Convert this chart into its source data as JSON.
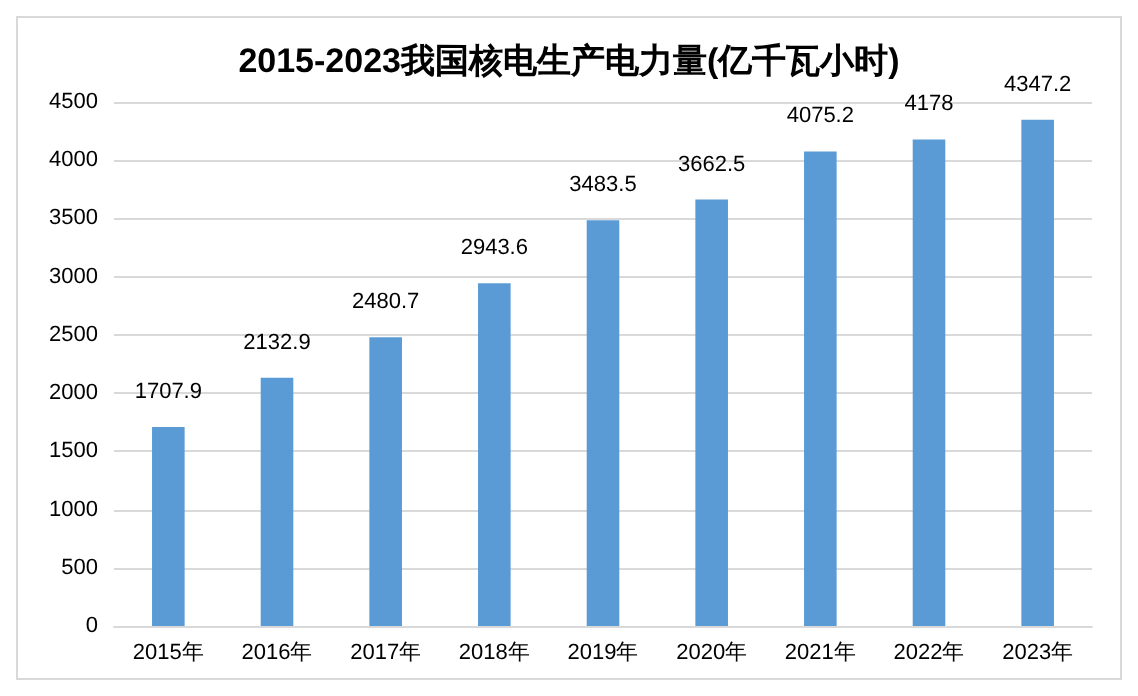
{
  "chart_data": {
    "type": "bar",
    "title": "2015-2023我国核电生产电力量(亿千瓦小时)",
    "categories": [
      "2015年",
      "2016年",
      "2017年",
      "2018年",
      "2019年",
      "2020年",
      "2021年",
      "2022年",
      "2023年"
    ],
    "values": [
      1707.9,
      2132.9,
      2480.7,
      2943.6,
      3483.5,
      3662.5,
      4075.2,
      4178,
      4347.2
    ],
    "color": "#5b9bd5",
    "ylim": [
      0,
      4500
    ],
    "yticks": [
      0,
      500,
      1000,
      1500,
      2000,
      2500,
      3000,
      3500,
      4000,
      4500
    ],
    "grid": "y",
    "data_labels": true
  }
}
